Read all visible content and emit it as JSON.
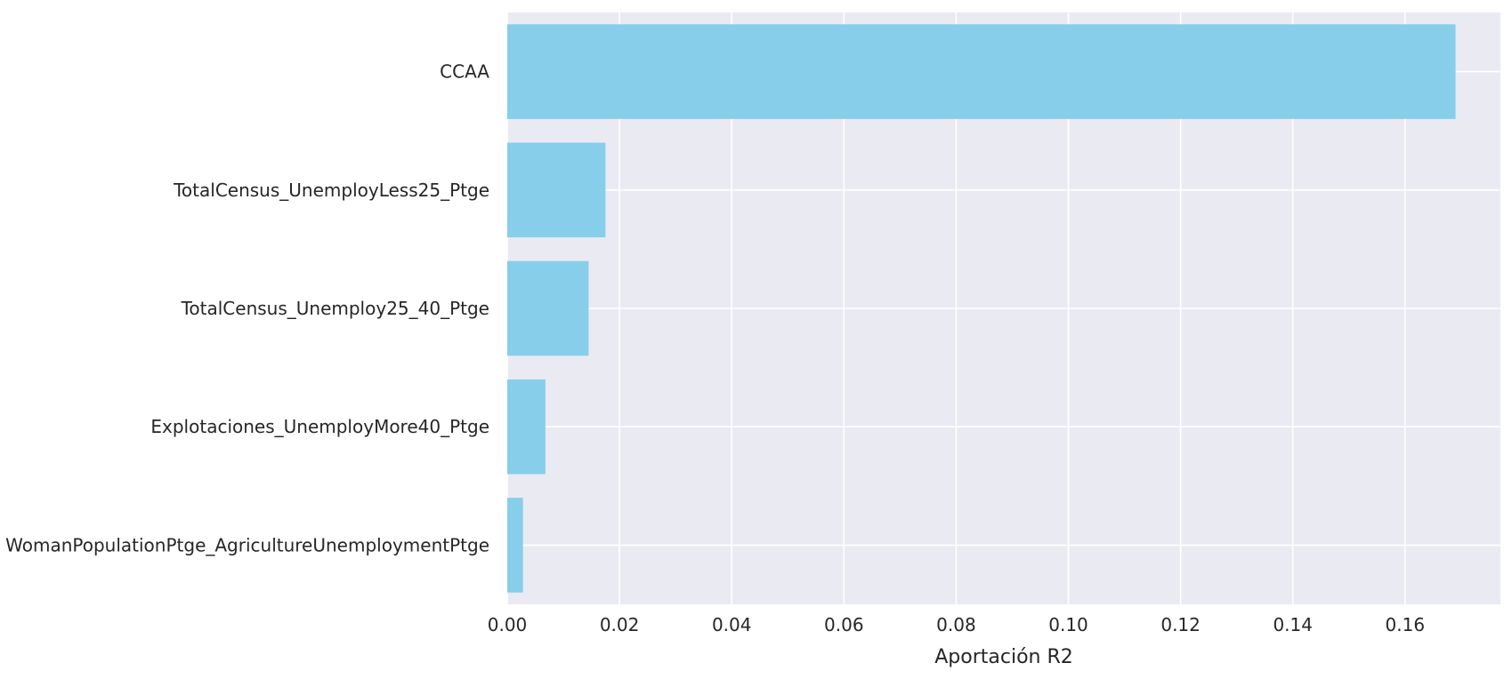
{
  "chart_data": {
    "type": "bar",
    "orientation": "horizontal",
    "title": "",
    "xlabel": "Aportación R2",
    "ylabel": "",
    "categories": [
      "CCAA",
      "TotalCensus_UnemployLess25_Ptge",
      "TotalCensus_Unemploy25_40_Ptge",
      "Explotaciones_UnemployMore40_Ptge",
      "WomanPopulationPtge_AgricultureUnemploymentPtge"
    ],
    "values": [
      0.169,
      0.0175,
      0.0145,
      0.0068,
      0.0028
    ],
    "xlim": [
      0,
      0.177
    ],
    "xticks": [
      0.0,
      0.02,
      0.04,
      0.06,
      0.08,
      0.1,
      0.12,
      0.14,
      0.16
    ],
    "xtick_labels": [
      "0.00",
      "0.02",
      "0.04",
      "0.06",
      "0.08",
      "0.10",
      "0.12",
      "0.14",
      "0.16"
    ],
    "grid": true,
    "colors": {
      "bar": "#87ceeb",
      "plot_background": "#eaeaf2",
      "grid": "#ffffff",
      "text": "#262626"
    }
  }
}
